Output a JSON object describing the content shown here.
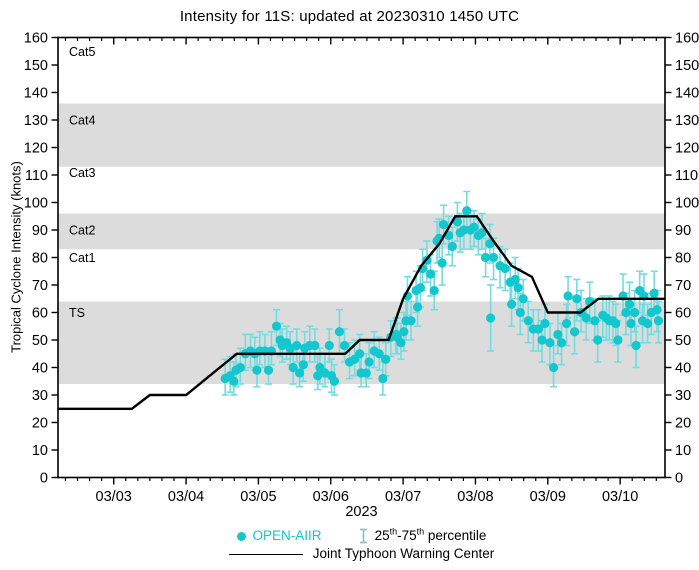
{
  "chart_data": {
    "type": "scatter",
    "title": "Intensity for 11S: updated at 20230310 1450 UTC",
    "ylabel": "Tropical Cyclone Intensity (knots)",
    "xlabel": "2023",
    "x_unit": "days since 2023-03-03 00:00 UTC",
    "xlim": [
      -0.77,
      7.62
    ],
    "ylim": [
      0,
      160
    ],
    "y_tick_step": 10,
    "x_minor_interval": 0.1666667,
    "grid": false,
    "band_color": "#dcdcdc",
    "shaded_bands": [
      [
        34,
        64
      ],
      [
        83,
        96
      ],
      [
        113,
        136
      ]
    ],
    "category_labels": [
      {
        "text": "TS",
        "y": 60
      },
      {
        "text": "Cat1",
        "y": 80
      },
      {
        "text": "Cat2",
        "y": 90
      },
      {
        "text": "Cat3",
        "y": 111
      },
      {
        "text": "Cat4",
        "y": 130
      },
      {
        "text": "Cat5",
        "y": 155
      }
    ],
    "x_major_ticks": [
      {
        "t": 0,
        "label": "03/03"
      },
      {
        "t": 1,
        "label": "03/04"
      },
      {
        "t": 2,
        "label": "03/05"
      },
      {
        "t": 3,
        "label": "03/06"
      },
      {
        "t": 4,
        "label": "03/07"
      },
      {
        "t": 5,
        "label": "03/08"
      },
      {
        "t": 6,
        "label": "03/09"
      },
      {
        "t": 7,
        "label": "03/10"
      }
    ],
    "series": [
      {
        "name": "OPEN-AIIR",
        "type": "scatter",
        "marker_color": "#14c6cd",
        "errorbar_color": "#72dce1",
        "points_format": [
          "t_days",
          "knots",
          "p25",
          "p75"
        ],
        "points": [
          [
            1.54,
            36,
            30,
            43
          ],
          [
            1.61,
            37,
            31,
            44
          ],
          [
            1.66,
            35,
            30,
            42
          ],
          [
            1.69,
            39,
            33,
            45
          ],
          [
            1.75,
            40,
            34,
            47
          ],
          [
            1.82,
            45,
            39,
            52
          ],
          [
            1.89,
            46,
            40,
            52
          ],
          [
            1.95,
            45,
            39,
            51
          ],
          [
            1.98,
            39,
            33,
            46
          ],
          [
            2.02,
            46,
            41,
            53
          ],
          [
            2.09,
            46,
            40,
            52
          ],
          [
            2.14,
            39,
            34,
            46
          ],
          [
            2.18,
            46,
            41,
            53
          ],
          [
            2.25,
            55,
            48,
            61
          ],
          [
            2.3,
            50,
            44,
            56
          ],
          [
            2.33,
            48,
            42,
            54
          ],
          [
            2.39,
            49,
            43,
            55
          ],
          [
            2.44,
            47,
            41,
            53
          ],
          [
            2.48,
            40,
            34,
            46
          ],
          [
            2.53,
            48,
            42,
            54
          ],
          [
            2.57,
            38,
            33,
            45
          ],
          [
            2.62,
            41,
            35,
            48
          ],
          [
            2.64,
            47,
            41,
            53
          ],
          [
            2.71,
            48,
            42,
            55
          ],
          [
            2.78,
            48,
            42,
            54
          ],
          [
            2.82,
            37,
            32,
            44
          ],
          [
            2.85,
            40,
            34,
            47
          ],
          [
            2.92,
            38,
            33,
            45
          ],
          [
            2.98,
            48,
            42,
            54
          ],
          [
            3.01,
            37,
            31,
            43
          ],
          [
            3.05,
            35,
            30,
            41
          ],
          [
            3.12,
            53,
            45,
            61
          ],
          [
            3.19,
            48,
            42,
            54
          ],
          [
            3.26,
            42,
            36,
            49
          ],
          [
            3.33,
            43,
            37,
            50
          ],
          [
            3.4,
            45,
            39,
            52
          ],
          [
            3.42,
            38,
            33,
            45
          ],
          [
            3.49,
            38,
            33,
            45
          ],
          [
            3.53,
            42,
            36,
            49
          ],
          [
            3.6,
            46,
            40,
            53
          ],
          [
            3.67,
            45,
            39,
            51
          ],
          [
            3.72,
            36,
            30,
            42
          ],
          [
            3.76,
            43,
            37,
            49
          ],
          [
            3.83,
            51,
            44,
            57
          ],
          [
            3.9,
            52,
            45,
            58
          ],
          [
            3.92,
            51,
            45,
            58
          ],
          [
            3.97,
            49,
            43,
            56
          ],
          [
            4.01,
            53,
            46,
            60
          ],
          [
            4.04,
            57,
            50,
            64
          ],
          [
            4.06,
            66,
            59,
            73
          ],
          [
            4.11,
            57,
            50,
            64
          ],
          [
            4.18,
            68,
            60,
            75
          ],
          [
            4.2,
            62,
            55,
            69
          ],
          [
            4.24,
            69,
            62,
            77
          ],
          [
            4.27,
            76,
            68,
            83
          ],
          [
            4.33,
            79,
            71,
            86
          ],
          [
            4.38,
            74,
            66,
            81
          ],
          [
            4.43,
            68,
            61,
            75
          ],
          [
            4.47,
            86,
            78,
            93
          ],
          [
            4.5,
            87,
            80,
            94
          ],
          [
            4.54,
            78,
            70,
            85
          ],
          [
            4.56,
            92,
            85,
            99
          ],
          [
            4.63,
            88,
            81,
            95
          ],
          [
            4.68,
            84,
            77,
            91
          ],
          [
            4.75,
            93,
            86,
            100
          ],
          [
            4.79,
            89,
            82,
            96
          ],
          [
            4.84,
            90,
            83,
            96
          ],
          [
            4.88,
            97,
            90,
            104
          ],
          [
            4.93,
            90,
            83,
            97
          ],
          [
            4.98,
            91,
            84,
            97
          ],
          [
            5.04,
            88,
            81,
            94
          ],
          [
            5.09,
            89,
            83,
            96
          ],
          [
            5.14,
            80,
            73,
            87
          ],
          [
            5.2,
            85,
            78,
            92
          ],
          [
            5.21,
            58,
            46,
            70
          ],
          [
            5.25,
            80,
            72,
            87
          ],
          [
            5.34,
            77,
            69,
            84
          ],
          [
            5.41,
            76,
            68,
            83
          ],
          [
            5.48,
            71,
            63,
            78
          ],
          [
            5.5,
            63,
            55,
            70
          ],
          [
            5.55,
            72,
            65,
            80
          ],
          [
            5.59,
            69,
            61,
            76
          ],
          [
            5.62,
            60,
            52,
            67
          ],
          [
            5.66,
            65,
            57,
            72
          ],
          [
            5.73,
            57,
            49,
            64
          ],
          [
            5.8,
            54,
            46,
            61
          ],
          [
            5.87,
            54,
            46,
            61
          ],
          [
            5.92,
            50,
            42,
            57
          ],
          [
            5.96,
            56,
            49,
            63
          ],
          [
            6.03,
            49,
            41,
            56
          ],
          [
            6.08,
            40,
            33,
            48
          ],
          [
            6.14,
            52,
            45,
            60
          ],
          [
            6.19,
            49,
            41,
            56
          ],
          [
            6.26,
            56,
            48,
            63
          ],
          [
            6.28,
            66,
            58,
            73
          ],
          [
            6.37,
            53,
            45,
            60
          ],
          [
            6.4,
            65,
            57,
            72
          ],
          [
            6.46,
            60,
            53,
            68
          ],
          [
            6.53,
            58,
            50,
            65
          ],
          [
            6.58,
            64,
            56,
            71
          ],
          [
            6.65,
            57,
            50,
            65
          ],
          [
            6.69,
            50,
            42,
            57
          ],
          [
            6.76,
            59,
            51,
            66
          ],
          [
            6.81,
            58,
            50,
            65
          ],
          [
            6.85,
            57,
            50,
            66
          ],
          [
            6.9,
            57,
            49,
            64
          ],
          [
            6.94,
            56,
            48,
            63
          ],
          [
            6.97,
            50,
            42,
            57
          ],
          [
            7.04,
            66,
            59,
            74
          ],
          [
            7.08,
            60,
            52,
            67
          ],
          [
            7.13,
            63,
            55,
            71
          ],
          [
            7.15,
            56,
            48,
            62
          ],
          [
            7.2,
            60,
            53,
            68
          ],
          [
            7.22,
            48,
            40,
            55
          ],
          [
            7.27,
            68,
            60,
            75
          ],
          [
            7.31,
            57,
            49,
            63
          ],
          [
            7.33,
            66,
            59,
            74
          ],
          [
            7.38,
            56,
            49,
            63
          ],
          [
            7.43,
            60,
            52,
            67
          ],
          [
            7.47,
            67,
            60,
            75
          ],
          [
            7.51,
            61,
            53,
            68
          ],
          [
            7.53,
            57,
            49,
            64
          ]
        ]
      },
      {
        "name": "Joint Typhoon Warning Center",
        "type": "line",
        "color": "#000000",
        "points_format": [
          "t_days",
          "knots"
        ],
        "points": [
          [
            -0.77,
            25
          ],
          [
            0.25,
            25
          ],
          [
            0.5,
            30
          ],
          [
            1.0,
            30
          ],
          [
            1.7,
            45
          ],
          [
            3.2,
            45
          ],
          [
            3.4,
            50
          ],
          [
            3.8,
            50
          ],
          [
            4.0,
            65
          ],
          [
            4.25,
            77
          ],
          [
            4.5,
            85
          ],
          [
            4.72,
            95
          ],
          [
            5.02,
            95
          ],
          [
            5.25,
            86
          ],
          [
            5.5,
            77
          ],
          [
            5.78,
            73
          ],
          [
            6.0,
            60
          ],
          [
            6.45,
            60
          ],
          [
            6.7,
            65
          ],
          [
            7.62,
            65
          ]
        ]
      }
    ],
    "legend": {
      "position": "bottom",
      "open_aiir": "OPEN-AIIR",
      "percentile": {
        "p1": "25",
        "s1": "th",
        "p2": "-75",
        "s2": "th",
        "p3": " percentile"
      },
      "jtwc": "Joint Typhoon Warning Center"
    }
  }
}
